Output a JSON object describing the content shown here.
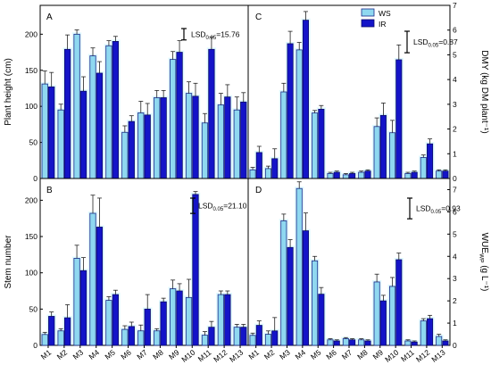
{
  "chart_data": [
    {
      "panel": "A",
      "type": "bar",
      "title": "",
      "xlabel": "",
      "ylabel": "Plant height (cm)",
      "ylim": [
        0,
        240
      ],
      "yticks": [
        0,
        50,
        100,
        150,
        200
      ],
      "categories": [
        "M1",
        "M2",
        "M3",
        "M4",
        "M5",
        "M6",
        "M7",
        "M8",
        "M9",
        "M10",
        "M11",
        "M12",
        "M13"
      ],
      "series": [
        {
          "name": "WS",
          "values": [
            131,
            95,
            200,
            170,
            184,
            64,
            91,
            112,
            165,
            118,
            77,
            102,
            95
          ],
          "errors": [
            18,
            8,
            6,
            11,
            7,
            9,
            16,
            10,
            11,
            16,
            13,
            16,
            18
          ]
        },
        {
          "name": "IR",
          "values": [
            127,
            179,
            121,
            146,
            190,
            79,
            88,
            112,
            175,
            114,
            179,
            113,
            106
          ],
          "errors": [
            20,
            20,
            20,
            16,
            7,
            8,
            16,
            10,
            16,
            18,
            17,
            17,
            13
          ]
        }
      ],
      "lsd_text": "LSD",
      "lsd_sub": "0.05",
      "lsd_value": "=15.76",
      "lsd": 15.76
    },
    {
      "panel": "B",
      "type": "bar",
      "title": "",
      "xlabel": "",
      "ylabel": "Stem number",
      "ylim": [
        0,
        230
      ],
      "yticks": [
        0,
        50,
        100,
        150,
        200
      ],
      "categories": [
        "M1",
        "M2",
        "M3",
        "M4",
        "M5",
        "M6",
        "M7",
        "M8",
        "M9",
        "M10",
        "M11",
        "M12",
        "M13"
      ],
      "series": [
        {
          "name": "WS",
          "values": [
            15,
            20,
            120,
            182,
            62,
            22,
            20,
            20,
            78,
            66,
            14,
            70,
            25
          ],
          "errors": [
            3,
            3,
            18,
            25,
            5,
            5,
            8,
            3,
            12,
            25,
            5,
            5,
            4
          ]
        },
        {
          "name": "IR",
          "values": [
            40,
            38,
            103,
            163,
            70,
            26,
            50,
            60,
            75,
            208,
            25,
            70,
            25
          ],
          "errors": [
            6,
            18,
            18,
            40,
            6,
            6,
            20,
            5,
            10,
            4,
            8,
            5,
            4
          ]
        }
      ],
      "lsd_text": "LSD",
      "lsd_sub": "0.05",
      "lsd_value": "=21.10",
      "lsd": 21.1
    },
    {
      "panel": "C",
      "type": "bar",
      "title": "",
      "xlabel": "",
      "ylabel": "DMY (kg DM plant⁻¹)",
      "ylim": [
        0,
        7
      ],
      "yticks": [
        0,
        1,
        2,
        3,
        4,
        5,
        6,
        7
      ],
      "categories": [
        "M1",
        "M2",
        "M3",
        "M4",
        "M5",
        "M6",
        "M7",
        "M8",
        "M9",
        "M10",
        "M11",
        "M12",
        "M13"
      ],
      "series": [
        {
          "name": "WS",
          "values": [
            0.35,
            0.4,
            3.5,
            5.2,
            2.65,
            0.2,
            0.15,
            0.25,
            2.1,
            1.85,
            0.2,
            0.85,
            0.3
          ],
          "errors": [
            0.1,
            0.1,
            0.35,
            0.3,
            0.1,
            0.05,
            0.05,
            0.05,
            0.35,
            0.5,
            0.05,
            0.1,
            0.05
          ]
        },
        {
          "name": "IR",
          "values": [
            1.05,
            0.8,
            5.45,
            6.4,
            2.8,
            0.25,
            0.2,
            0.3,
            2.55,
            4.8,
            0.25,
            1.4,
            0.3
          ],
          "errors": [
            0.25,
            0.4,
            0.5,
            0.35,
            0.15,
            0.05,
            0.05,
            0.05,
            0.5,
            0.6,
            0.05,
            0.2,
            0.05
          ]
        }
      ],
      "legend": {
        "position": "top-right"
      },
      "lsd_text": "LSD",
      "lsd_sub": "0.05",
      "lsd_value": "=0.87",
      "lsd": 0.87
    },
    {
      "panel": "D",
      "type": "bar",
      "title": "",
      "xlabel": "",
      "ylabel_main": "WUE",
      "ylabel_sub": "WP",
      "ylabel_rest": " (g L⁻¹)",
      "ylim": [
        0,
        7.5
      ],
      "yticks": [
        0,
        1,
        2,
        3,
        4,
        5,
        6,
        7
      ],
      "categories": [
        "M1",
        "M2",
        "M3",
        "M4",
        "M5",
        "M6",
        "M7",
        "M8",
        "M9",
        "M10",
        "M11",
        "M12",
        "M13"
      ],
      "series": [
        {
          "name": "WS",
          "values": [
            0.45,
            0.5,
            5.6,
            7.05,
            3.8,
            0.25,
            0.3,
            0.25,
            2.85,
            2.65,
            0.2,
            1.1,
            0.4
          ],
          "errors": [
            0.1,
            0.15,
            0.3,
            0.3,
            0.2,
            0.05,
            0.05,
            0.05,
            0.35,
            0.4,
            0.05,
            0.1,
            0.1
          ]
        },
        {
          "name": "IR",
          "values": [
            0.9,
            0.65,
            4.4,
            5.15,
            2.3,
            0.2,
            0.25,
            0.2,
            2.0,
            3.85,
            0.15,
            1.2,
            0.2
          ],
          "errors": [
            0.2,
            0.6,
            0.35,
            0.8,
            0.3,
            0.05,
            0.05,
            0.05,
            0.25,
            0.3,
            0.05,
            0.15,
            0.05
          ]
        }
      ],
      "lsd_text": "LSD",
      "lsd_sub": "0.05",
      "lsd_value": "=0.93",
      "lsd": 0.93
    }
  ],
  "colors": {
    "ws_fill": "#8fd8f0",
    "ws_stroke": "#1a2a8a",
    "ir_fill": "#1414c8",
    "ir_stroke": "#0a0a6a",
    "axis": "#000000",
    "glow": "#a8f0ff"
  }
}
